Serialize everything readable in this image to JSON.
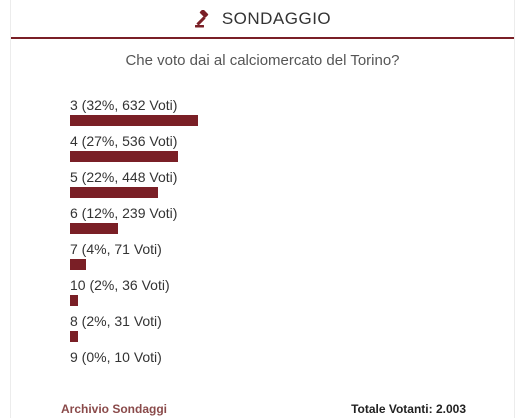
{
  "header": {
    "icon": "gavel-icon",
    "title": "SONDAGGIO",
    "accent_color": "#7a1f26"
  },
  "question": "Che voto dai al calciomercato del Torino?",
  "options": [
    {
      "label": "3 (32%, 632 Voti)",
      "percent": 32
    },
    {
      "label": "4 (27%, 536 Voti)",
      "percent": 27
    },
    {
      "label": "5 (22%, 448 Voti)",
      "percent": 22
    },
    {
      "label": "6 (12%, 239 Voti)",
      "percent": 12
    },
    {
      "label": "7 (4%, 71 Voti)",
      "percent": 4
    },
    {
      "label": "10 (2%, 36 Voti)",
      "percent": 2
    },
    {
      "label": "8 (2%, 31 Voti)",
      "percent": 2
    },
    {
      "label": "9 (0%, 10 Voti)",
      "percent": 0
    }
  ],
  "footer": {
    "archive_link": "Archivio Sondaggi",
    "total_voters": "Totale Votanti: 2.003"
  }
}
